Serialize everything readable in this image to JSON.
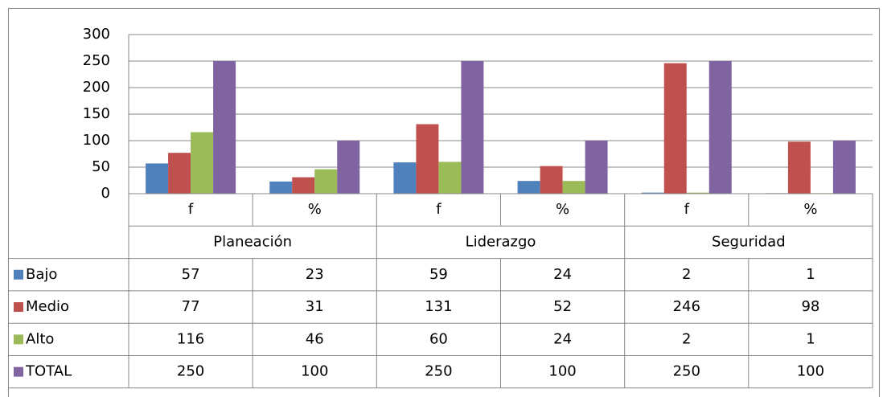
{
  "chart_data": {
    "type": "bar",
    "categories": [
      "f",
      "%",
      "f",
      "%",
      "f",
      "%"
    ],
    "groups": [
      "Planeación",
      "Liderazgo",
      "Seguridad"
    ],
    "series": [
      {
        "name": "Bajo",
        "color": "#4f81bd",
        "values": [
          57,
          23,
          59,
          24,
          2,
          1
        ]
      },
      {
        "name": "Medio",
        "color": "#c0504d",
        "values": [
          77,
          31,
          131,
          52,
          246,
          98
        ]
      },
      {
        "name": "Alto",
        "color": "#9bbb59",
        "values": [
          116,
          46,
          60,
          24,
          2,
          1
        ]
      },
      {
        "name": "TOTAL",
        "color": "#8064a2",
        "values": [
          250,
          100,
          250,
          100,
          250,
          100
        ]
      }
    ],
    "ylim": [
      0,
      300
    ],
    "yticks": [
      0,
      50,
      100,
      150,
      200,
      250,
      300
    ],
    "grid": true
  }
}
